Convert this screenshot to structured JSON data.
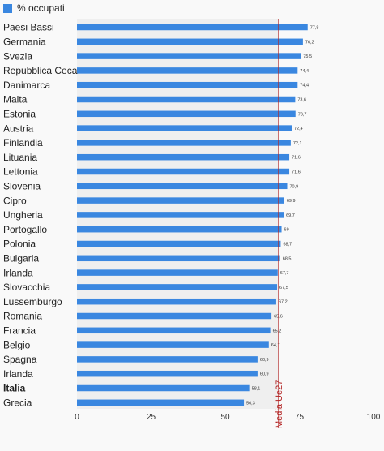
{
  "chart_data": {
    "type": "bar",
    "orientation": "horizontal",
    "legend": "% occupati",
    "categories": [
      "Paesi Bassi",
      "Germania",
      "Svezia",
      "Repubblica Ceca",
      "Danimarca",
      "Malta",
      "Estonia",
      "Austria",
      "Finlandia",
      "Lituania",
      "Lettonia",
      "Slovenia",
      "Cipro",
      "Ungheria",
      "Portogallo",
      "Polonia",
      "Bulgaria",
      "Irlanda",
      "Slovacchia",
      "Lussemburgo",
      "Romania",
      "Francia",
      "Belgio",
      "Spagna",
      "Irlanda",
      "Italia",
      "Grecia"
    ],
    "values": [
      77.8,
      76.2,
      75.5,
      74.4,
      74.4,
      73.6,
      73.7,
      72.4,
      72.1,
      71.6,
      71.6,
      70.9,
      69.9,
      69.7,
      69,
      68.7,
      68.5,
      67.7,
      67.5,
      67.2,
      65.6,
      65.2,
      64.7,
      60.9,
      60.9,
      58.1,
      56.3
    ],
    "value_labels": [
      "77,8",
      "76,2",
      "75,5",
      "74,4",
      "74,4",
      "73,6",
      "73,7",
      "72,4",
      "72,1",
      "71,6",
      "71,6",
      "70,9",
      "69,9",
      "69,7",
      "69",
      "68,7",
      "68,5",
      "67,7",
      "67,5",
      "67,2",
      "65,6",
      "65,2",
      "64,7",
      "60,9",
      "60,9",
      "58,1",
      "56,3"
    ],
    "highlight_category": "Italia",
    "xlim": [
      0,
      100
    ],
    "xticks": [
      0,
      25,
      50,
      75,
      100
    ],
    "reference_line": {
      "value": 68,
      "label": "Media Ue27"
    },
    "legend_position": "top-left",
    "grid": false,
    "colors": {
      "bar": "#3a87e0",
      "reference": "#b22222",
      "shade": "#efefef"
    }
  }
}
